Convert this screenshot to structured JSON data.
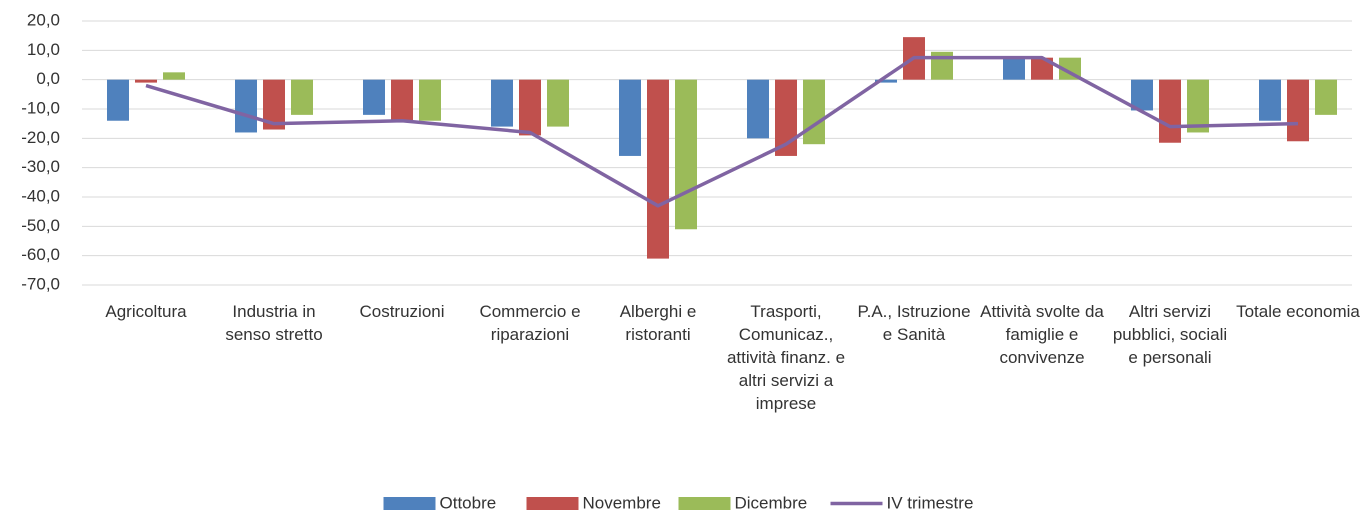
{
  "chart_data": {
    "type": "bar_line",
    "categories": [
      "Agricoltura",
      "Industria in senso stretto",
      "Costruzioni",
      "Commercio e riparazioni",
      "Alberghi e ristoranti",
      "Trasporti, Comunicaz., attività finanz. e altri servizi a imprese",
      "P.A., Istruzione e Sanità",
      "Attività svolte da famiglie e convivenze",
      "Altri servizi pubblici, sociali e personali",
      "Totale economia"
    ],
    "series": [
      {
        "name": "Ottobre",
        "type": "bar",
        "color": "#4f81bd",
        "values": [
          -14,
          -18,
          -12,
          -16,
          -26,
          -20,
          -1,
          7.5,
          -10.5,
          -14
        ]
      },
      {
        "name": "Novembre",
        "type": "bar",
        "color": "#c0504d",
        "values": [
          -1,
          -17,
          -14,
          -19,
          -61,
          -26,
          14.5,
          7.5,
          -21.5,
          -21
        ]
      },
      {
        "name": "Dicembre",
        "type": "bar",
        "color": "#9bbb59",
        "values": [
          2.5,
          -12,
          -14,
          -16,
          -51,
          -22,
          9.5,
          7.5,
          -18,
          -12
        ]
      },
      {
        "name": "IV trimestre",
        "type": "line",
        "color": "#8064a2",
        "values": [
          -2,
          -15,
          -14,
          -18,
          -43,
          -22,
          7.5,
          7.5,
          -16,
          -15
        ]
      }
    ],
    "ylim": [
      -70,
      20
    ],
    "yticks": [
      {
        "value": 20,
        "label": "20,0"
      },
      {
        "value": 10,
        "label": "10,0"
      },
      {
        "value": 0,
        "label": "0,0"
      },
      {
        "value": -10,
        "label": "-10,0"
      },
      {
        "value": -20,
        "label": "-20,0"
      },
      {
        "value": -30,
        "label": "-30,0"
      },
      {
        "value": -40,
        "label": "-40,0"
      },
      {
        "value": -50,
        "label": "-50,0"
      },
      {
        "value": -60,
        "label": "-60,0"
      },
      {
        "value": -70,
        "label": "-70,0"
      }
    ],
    "grid": true
  }
}
